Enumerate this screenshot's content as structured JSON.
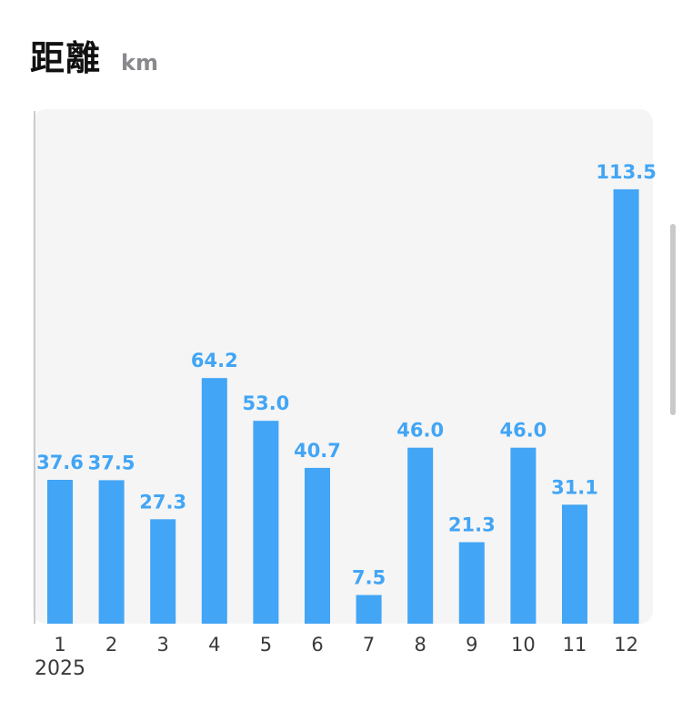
{
  "header": {
    "title": "距離",
    "unit": "km"
  },
  "chart_data": {
    "type": "bar",
    "categories": [
      "1",
      "2",
      "3",
      "4",
      "5",
      "6",
      "7",
      "8",
      "9",
      "10",
      "11",
      "12"
    ],
    "values": [
      37.6,
      37.5,
      27.3,
      64.2,
      53.0,
      40.7,
      7.5,
      46.0,
      21.3,
      46.0,
      31.1,
      113.5
    ],
    "value_labels": [
      "37.6",
      "37.5",
      "27.3",
      "64.2",
      "53.0",
      "40.7",
      "7.5",
      "46.0",
      "21.3",
      "46.0",
      "31.1",
      "113.5"
    ],
    "title": "距離",
    "ylabel": "km",
    "xlabel": "2025",
    "ylim": [
      0,
      128
    ],
    "grid": false,
    "colors": {
      "bar": "#42a5f5",
      "value_label": "#42a5f5",
      "axis": "#cccccc",
      "tick_label": "#3a3a3c"
    }
  },
  "footer": {
    "year": "2025"
  }
}
